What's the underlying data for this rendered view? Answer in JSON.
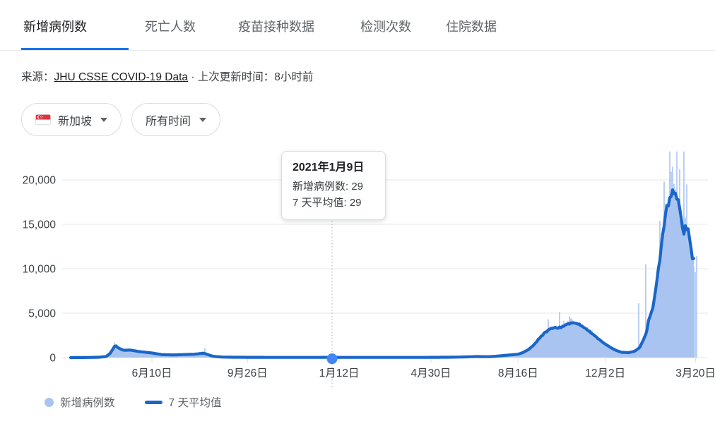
{
  "tabs": {
    "items": [
      {
        "label": "新增病例数",
        "active": true
      },
      {
        "label": "死亡人数",
        "active": false
      },
      {
        "label": "疫苗接种数据",
        "active": false
      },
      {
        "label": "检测次数",
        "active": false
      },
      {
        "label": "住院数据",
        "active": false
      }
    ]
  },
  "source": {
    "prefix": "来源：",
    "link_label": "JHU CSSE COVID-19 Data",
    "separator": " · ",
    "updated": "上次更新时间：8小时前"
  },
  "filters": {
    "region_label": "新加坡",
    "region_flag": "singapore-flag",
    "time_label": "所有时间"
  },
  "tooltip": {
    "title": "2021年1月9日",
    "line1": "新增病例数: 29",
    "line2": "7 天平均值: 29"
  },
  "legend": {
    "daily_label": "新增病例数",
    "avg_label": "7 天平均值"
  },
  "chart_data": {
    "type": "area",
    "subtype": "daily-bars-with-7-day-average-line",
    "title": "新增病例数",
    "xlabel": "",
    "ylabel": "",
    "grid": true,
    "legend_position": "bottom",
    "y_axis": {
      "ticks": [
        {
          "label": "0",
          "value": 0
        },
        {
          "label": "5,000",
          "value": 5000
        },
        {
          "label": "10,000",
          "value": 10000
        },
        {
          "label": "15,000",
          "value": 15000
        },
        {
          "label": "20,000",
          "value": 20000
        }
      ],
      "max_value": 23500
    },
    "x_axis": {
      "ticks": [
        {
          "label": "6月10日",
          "f": 0.139
        },
        {
          "label": "9月26日",
          "f": 0.287
        },
        {
          "label": "1月12日",
          "f": 0.429
        },
        {
          "label": "4月30日",
          "f": 0.571
        },
        {
          "label": "8月16日",
          "f": 0.706
        },
        {
          "label": "12月2日",
          "f": 0.841
        },
        {
          "label": "3月20日",
          "f": 0.981
        }
      ]
    },
    "series": [
      {
        "name": "新增病例数",
        "render": "bars",
        "color": "#aac4f1"
      },
      {
        "name": "7 天平均值",
        "render": "line",
        "color": "#1a66c8"
      }
    ],
    "avg_keypoints": [
      [
        0.013,
        3
      ],
      [
        0.035,
        10
      ],
      [
        0.057,
        40
      ],
      [
        0.068,
        120
      ],
      [
        0.074,
        450
      ],
      [
        0.082,
        1350
      ],
      [
        0.088,
        1050
      ],
      [
        0.095,
        820
      ],
      [
        0.106,
        850
      ],
      [
        0.117,
        700
      ],
      [
        0.139,
        520
      ],
      [
        0.155,
        330
      ],
      [
        0.172,
        300
      ],
      [
        0.188,
        340
      ],
      [
        0.205,
        380
      ],
      [
        0.219,
        500
      ],
      [
        0.227,
        300
      ],
      [
        0.234,
        140
      ],
      [
        0.248,
        60
      ],
      [
        0.265,
        40
      ],
      [
        0.287,
        35
      ],
      [
        0.32,
        25
      ],
      [
        0.363,
        25
      ],
      [
        0.418,
        29
      ],
      [
        0.473,
        22
      ],
      [
        0.527,
        25
      ],
      [
        0.571,
        28
      ],
      [
        0.604,
        45
      ],
      [
        0.626,
        80
      ],
      [
        0.642,
        120
      ],
      [
        0.659,
        100
      ],
      [
        0.67,
        140
      ],
      [
        0.681,
        220
      ],
      [
        0.697,
        320
      ],
      [
        0.706,
        380
      ],
      [
        0.713,
        550
      ],
      [
        0.722,
        900
      ],
      [
        0.73,
        1400
      ],
      [
        0.737,
        2000
      ],
      [
        0.746,
        2700
      ],
      [
        0.755,
        3200
      ],
      [
        0.763,
        3400
      ],
      [
        0.768,
        3300
      ],
      [
        0.774,
        3500
      ],
      [
        0.779,
        3650
      ],
      [
        0.786,
        3800
      ],
      [
        0.792,
        3900
      ],
      [
        0.799,
        3800
      ],
      [
        0.805,
        3500
      ],
      [
        0.812,
        3150
      ],
      [
        0.821,
        2700
      ],
      [
        0.829,
        2200
      ],
      [
        0.841,
        1500
      ],
      [
        0.85,
        1100
      ],
      [
        0.858,
        800
      ],
      [
        0.866,
        600
      ],
      [
        0.877,
        560
      ],
      [
        0.886,
        700
      ],
      [
        0.894,
        1100
      ],
      [
        0.899,
        1800
      ],
      [
        0.905,
        2900
      ],
      [
        0.908,
        4100
      ],
      [
        0.911,
        4700
      ],
      [
        0.915,
        5600
      ],
      [
        0.919,
        7500
      ],
      [
        0.923,
        9800
      ],
      [
        0.928,
        12500
      ],
      [
        0.932,
        14800
      ],
      [
        0.936,
        16800
      ],
      [
        0.941,
        18000
      ],
      [
        0.945,
        18600
      ],
      [
        0.95,
        18300
      ],
      [
        0.954,
        17400
      ],
      [
        0.958,
        15800
      ],
      [
        0.963,
        14000
      ],
      [
        0.966,
        15000
      ],
      [
        0.969,
        14300
      ],
      [
        0.973,
        12600
      ],
      [
        0.976,
        11300
      ],
      [
        0.978,
        10900
      ]
    ],
    "daily_spikes": [
      [
        0.082,
        1700
      ],
      [
        0.221,
        1050
      ],
      [
        0.752,
        4300
      ],
      [
        0.771,
        5150
      ],
      [
        0.785,
        4650
      ],
      [
        0.892,
        6100
      ],
      [
        0.903,
        10500
      ],
      [
        0.925,
        15400
      ],
      [
        0.932,
        19800
      ],
      [
        0.94,
        23200
      ],
      [
        0.945,
        21500
      ],
      [
        0.952,
        23200
      ],
      [
        0.957,
        21200
      ],
      [
        0.963,
        23200
      ],
      [
        0.968,
        19500
      ]
    ],
    "selected_point": {
      "f": 0.418,
      "date": "2021年1月9日",
      "new_cases": 29,
      "seven_day_avg": 29
    },
    "colors": {
      "daily_fill": "#aac4f1",
      "avg_line": "#1a66c8",
      "marker": "#4285f4",
      "gridline": "#e6e8ea",
      "tick": "#dadce0",
      "axis_text": "#3c4043",
      "dotted_guide": "#b4b8bd",
      "accent_underline": "#1a73e8"
    }
  }
}
